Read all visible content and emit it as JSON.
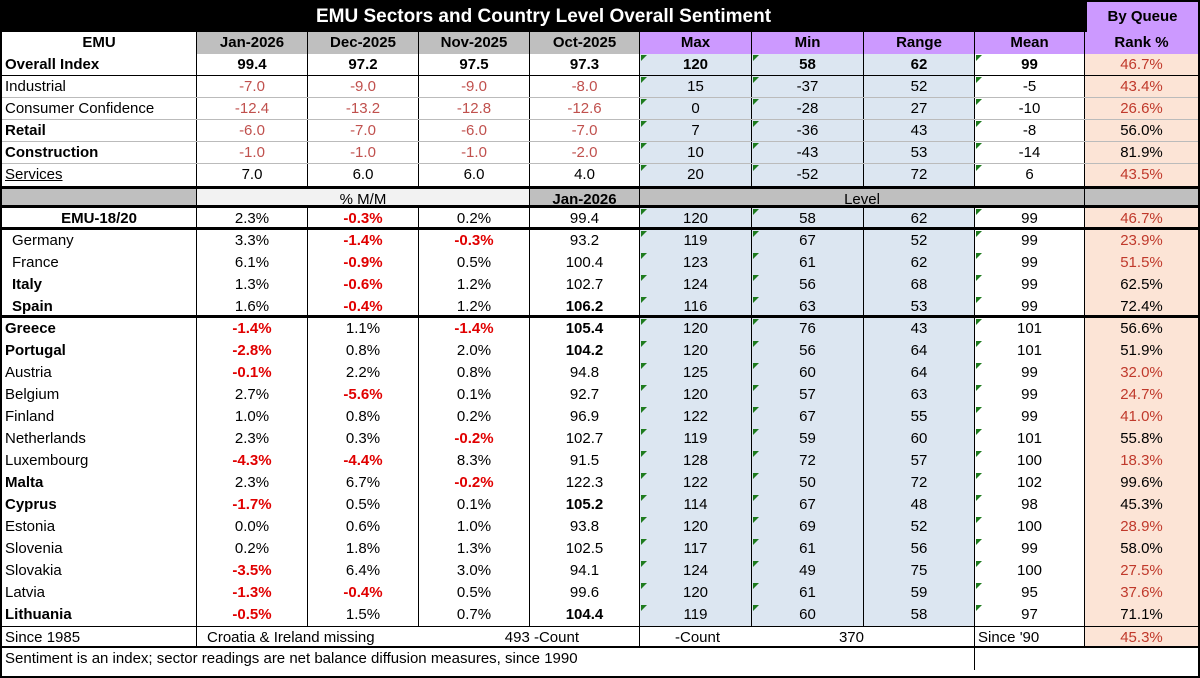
{
  "title": "EMU Sectors and Country Level Overall Sentiment",
  "queue_label": "By Queue",
  "header": [
    "EMU",
    "Jan-2026",
    "Dec-2025",
    "Nov-2025",
    "Oct-2025",
    "Max",
    "Min",
    "Range",
    "Mean",
    "Rank %"
  ],
  "overall": {
    "label": "Overall Index",
    "values": [
      "99.4",
      "97.2",
      "97.5",
      "97.3",
      "120",
      "58",
      "62",
      "99",
      "46.7%"
    ],
    "rank_red": true
  },
  "sectors": [
    {
      "label": "Industrial",
      "values": [
        "-7.0",
        "-9.0",
        "-9.0",
        "-8.0",
        "15",
        "-37",
        "52",
        "-5",
        "43.4%"
      ],
      "bold": false,
      "rank_red": true
    },
    {
      "label": "Consumer Confidence",
      "values": [
        "-12.4",
        "-13.2",
        "-12.8",
        "-12.6",
        "0",
        "-28",
        "27",
        "-10",
        "26.6%"
      ],
      "bold": false,
      "rank_red": true
    },
    {
      "label": "Retail",
      "values": [
        "-6.0",
        "-7.0",
        "-6.0",
        "-7.0",
        "7",
        "-36",
        "43",
        "-8",
        "56.0%"
      ],
      "bold": true,
      "rank_red": false
    },
    {
      "label": "Construction",
      "values": [
        "-1.0",
        "-1.0",
        "-1.0",
        "-2.0",
        "10",
        "-43",
        "53",
        "-14",
        "81.9%"
      ],
      "bold": true,
      "rank_red": false
    },
    {
      "label": "Services",
      "values": [
        "7.0",
        "6.0",
        "6.0",
        "4.0",
        "20",
        "-52",
        "72",
        "6",
        "43.5%"
      ],
      "bold": false,
      "underline": true,
      "rank_red": true
    }
  ],
  "section": {
    "mm_label": "% M/M",
    "date_label": "Jan-2026",
    "level_label": "Level"
  },
  "emu": {
    "label": "EMU-18/20",
    "values": [
      "2.3%",
      "-0.3%",
      "0.2%",
      "99.4",
      "120",
      "58",
      "62",
      "99",
      "46.7%"
    ],
    "rank_red": true
  },
  "big4": [
    {
      "label": "Germany",
      "values": [
        "3.3%",
        "-1.4%",
        "-0.3%",
        "93.2",
        "119",
        "67",
        "52",
        "99",
        "23.9%"
      ],
      "bold": false,
      "rank_red": true
    },
    {
      "label": "France",
      "values": [
        "6.1%",
        "-0.9%",
        "0.5%",
        "100.4",
        "123",
        "61",
        "62",
        "99",
        "51.5%"
      ],
      "bold": false,
      "rank_red": true
    },
    {
      "label": "Italy",
      "values": [
        "1.3%",
        "-0.6%",
        "1.2%",
        "102.7",
        "124",
        "56",
        "68",
        "99",
        "62.5%"
      ],
      "bold": true,
      "rank_red": false
    },
    {
      "label": "Spain",
      "values": [
        "1.6%",
        "-0.4%",
        "1.2%",
        "106.2",
        "116",
        "63",
        "53",
        "99",
        "72.4%"
      ],
      "bold": true,
      "level_bold": true,
      "rank_red": false
    }
  ],
  "countries": [
    {
      "label": "Greece",
      "values": [
        "-1.4%",
        "1.1%",
        "-1.4%",
        "105.4",
        "120",
        "76",
        "43",
        "101",
        "56.6%"
      ],
      "bold": true,
      "level_bold": true,
      "rank_red": false
    },
    {
      "label": "Portugal",
      "values": [
        "-2.8%",
        "0.8%",
        "2.0%",
        "104.2",
        "120",
        "56",
        "64",
        "101",
        "51.9%"
      ],
      "bold": true,
      "level_bold": true,
      "rank_red": false
    },
    {
      "label": "Austria",
      "values": [
        "-0.1%",
        "2.2%",
        "0.8%",
        "94.8",
        "125",
        "60",
        "64",
        "99",
        "32.0%"
      ],
      "bold": false,
      "rank_red": true
    },
    {
      "label": "Belgium",
      "values": [
        "2.7%",
        "-5.6%",
        "0.1%",
        "92.7",
        "120",
        "57",
        "63",
        "99",
        "24.7%"
      ],
      "bold": false,
      "rank_red": true
    },
    {
      "label": "Finland",
      "values": [
        "1.0%",
        "0.8%",
        "0.2%",
        "96.9",
        "122",
        "67",
        "55",
        "99",
        "41.0%"
      ],
      "bold": false,
      "rank_red": true
    },
    {
      "label": "Netherlands",
      "values": [
        "2.3%",
        "0.3%",
        "-0.2%",
        "102.7",
        "119",
        "59",
        "60",
        "101",
        "55.8%"
      ],
      "bold": false,
      "rank_red": false
    },
    {
      "label": "Luxembourg",
      "values": [
        "-4.3%",
        "-4.4%",
        "8.3%",
        "91.5",
        "128",
        "72",
        "57",
        "100",
        "18.3%"
      ],
      "bold": false,
      "rank_red": true
    },
    {
      "label": "Malta",
      "values": [
        "2.3%",
        "6.7%",
        "-0.2%",
        "122.3",
        "122",
        "50",
        "72",
        "102",
        "99.6%"
      ],
      "bold": true,
      "rank_red": false
    },
    {
      "label": "Cyprus",
      "values": [
        "-1.7%",
        "0.5%",
        "0.1%",
        "105.2",
        "114",
        "67",
        "48",
        "98",
        "45.3%"
      ],
      "bold": true,
      "level_bold": true,
      "rank_red": false
    },
    {
      "label": "Estonia",
      "values": [
        "0.0%",
        "0.6%",
        "1.0%",
        "93.8",
        "120",
        "69",
        "52",
        "100",
        "28.9%"
      ],
      "bold": false,
      "rank_red": true
    },
    {
      "label": "Slovenia",
      "values": [
        "0.2%",
        "1.8%",
        "1.3%",
        "102.5",
        "117",
        "61",
        "56",
        "99",
        "58.0%"
      ],
      "bold": false,
      "rank_red": false
    },
    {
      "label": "Slovakia",
      "values": [
        "-3.5%",
        "6.4%",
        "3.0%",
        "94.1",
        "124",
        "49",
        "75",
        "100",
        "27.5%"
      ],
      "bold": false,
      "rank_red": true
    },
    {
      "label": "Latvia",
      "values": [
        "-1.3%",
        "-0.4%",
        "0.5%",
        "99.6",
        "120",
        "61",
        "59",
        "95",
        "37.6%"
      ],
      "bold": false,
      "rank_red": true
    },
    {
      "label": "Lithuania",
      "values": [
        "-0.5%",
        "1.5%",
        "0.7%",
        "104.4",
        "119",
        "60",
        "58",
        "97",
        "71.1%"
      ],
      "bold": true,
      "level_bold": true,
      "rank_red": false
    }
  ],
  "footer": {
    "since": "Since 1985",
    "missing": "Croatia & Ireland missing",
    "count1": "493 -Count",
    "count_label": "-Count",
    "count2": "370",
    "since90": "Since '90",
    "rank": "45.3%"
  },
  "note": "Sentiment is an index; sector readings are net balance diffusion measures, since 1990",
  "colors": {
    "title_bg": "#000000",
    "purple": "#cc99ff",
    "blue": "#dce6f1",
    "rank_bg": "#fce4d6",
    "red": "#e00000"
  }
}
